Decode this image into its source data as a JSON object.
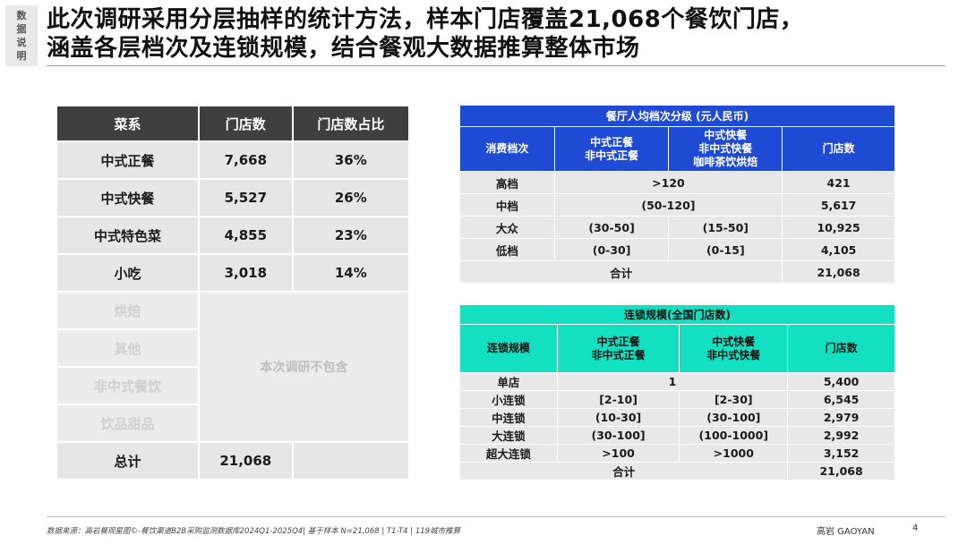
{
  "side_tag": [
    "数",
    "据",
    "说",
    "明"
  ],
  "title": {
    "line1": "此次调研采用分层抽样的统计方法，样本门店覆盖21,068个餐饮门店，",
    "line2": "涵盖各层档次及连锁规模，结合餐观大数据推算整体市场"
  },
  "left_table": {
    "headers": [
      "菜系",
      "门店数",
      "门店数占比"
    ],
    "rows": [
      {
        "name": "中式正餐",
        "count": "7,668",
        "pct": "36%"
      },
      {
        "name": "中式快餐",
        "count": "5,527",
        "pct": "26%"
      },
      {
        "name": "中式特色菜",
        "count": "4,855",
        "pct": "23%"
      },
      {
        "name": "小吃",
        "count": "3,018",
        "pct": "14%"
      }
    ],
    "excluded": [
      "烘焙",
      "其他",
      "非中式餐饮",
      "饮品甜品"
    ],
    "excluded_note": "本次调研不包含",
    "total_label": "总计",
    "total_value": "21,068"
  },
  "price_table": {
    "caption": "餐厅人均档次分级 (元人民币)",
    "headers": [
      "消费档次",
      "中式正餐\n非中式正餐",
      "中式快餐\n非中式快餐\n咖啡茶饮烘焙",
      "门店数"
    ],
    "rows": [
      {
        "tier": "高档",
        "merged": ">120",
        "count": "421"
      },
      {
        "tier": "中档",
        "merged": "(50-120]",
        "count": "5,617"
      },
      {
        "tier": "大众",
        "a": "(30-50]",
        "b": "(15-50]",
        "count": "10,925"
      },
      {
        "tier": "低档",
        "a": "(0-30]",
        "b": "(0-15]",
        "count": "4,105"
      }
    ],
    "total_label": "合计",
    "total_value": "21,068"
  },
  "chain_table": {
    "caption": "连锁规模(全国门店数)",
    "headers": [
      "连锁规模",
      "中式正餐\n非中式正餐",
      "中式快餐\n非中式快餐",
      "门店数"
    ],
    "rows": [
      {
        "scale": "单店",
        "merged": "1",
        "count": "5,400"
      },
      {
        "scale": "小连锁",
        "a": "[2-10]",
        "b": "[2-30]",
        "count": "6,545"
      },
      {
        "scale": "中连锁",
        "a": "(10-30]",
        "b": "(30-100]",
        "count": "2,979"
      },
      {
        "scale": "大连锁",
        "a": "(30-100]",
        "b": "(100-1000]",
        "count": "2,992"
      },
      {
        "scale": "超大连锁",
        "a": ">100",
        "b": ">1000",
        "count": "3,152"
      }
    ],
    "total_label": "合计",
    "total_value": "21,068"
  },
  "footer": {
    "source": "数据来源：高岩餐观星图©-餐饮渠道B2B采购监测数据库2024Q1-2025Q4| 基于样本 N=21,068 | T1-T4 | 119城市推算",
    "brand": "高岩 GAOYAN",
    "page": "4"
  }
}
